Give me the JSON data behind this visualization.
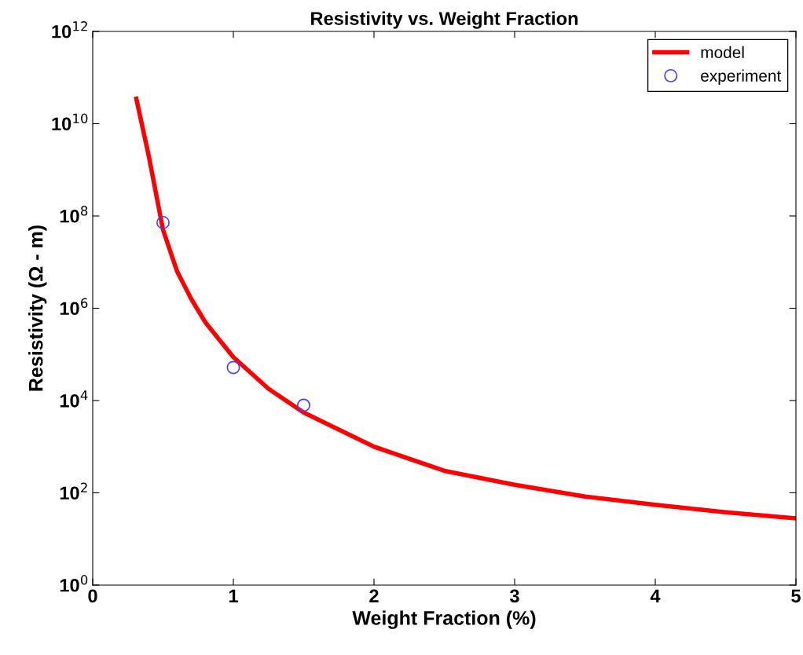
{
  "chart_data": {
    "type": "line",
    "title": "Resistivity vs. Weight Fraction",
    "xlabel": "Weight Fraction (%)",
    "ylabel": "Resistivity (Ω - m)",
    "log": "y",
    "grid": false,
    "legend": "top right",
    "xlim": [
      0,
      5
    ],
    "xticks": [
      0,
      1,
      2,
      3,
      4,
      5
    ],
    "ylim": [
      1,
      1000000000000.0
    ],
    "yticks": [
      {
        "value": 1,
        "label": "10$^{0}$"
      },
      {
        "value": 100,
        "label": "10$^{2}$"
      },
      {
        "value": 10000,
        "label": "10$^{4}$"
      },
      {
        "value": 1000000,
        "label": "10$^{6}$"
      },
      {
        "value": 100000000,
        "label": "10$^{8}$"
      },
      {
        "value": 10000000000,
        "label": "10$^{10}$"
      },
      {
        "value": 1000000000000,
        "label": "10$^{12}$"
      }
    ],
    "series": [
      {
        "name": "model",
        "color": "#ff0000",
        "marker": "none",
        "line_style": "solid",
        "x": [
          0.31,
          0.4,
          0.5,
          0.6,
          0.7,
          0.8,
          1.0,
          1.25,
          1.5,
          2,
          2.5,
          3,
          3.5,
          4,
          4.5,
          5
        ],
        "values": [
          35000000000.0,
          1900000000.0,
          50000000.0,
          6300000.0,
          1600000.0,
          500000.0,
          87000.0,
          18000.0,
          5500.0,
          1000.0,
          300,
          150,
          83,
          55,
          38,
          28
        ]
      },
      {
        "name": "experiment",
        "type": "scatter",
        "color": "#4040ff",
        "marker": "circle",
        "x": [
          0.5,
          1.0,
          1.5
        ],
        "values": [
          72000000.0,
          52000.0,
          7900.0
        ]
      }
    ]
  }
}
